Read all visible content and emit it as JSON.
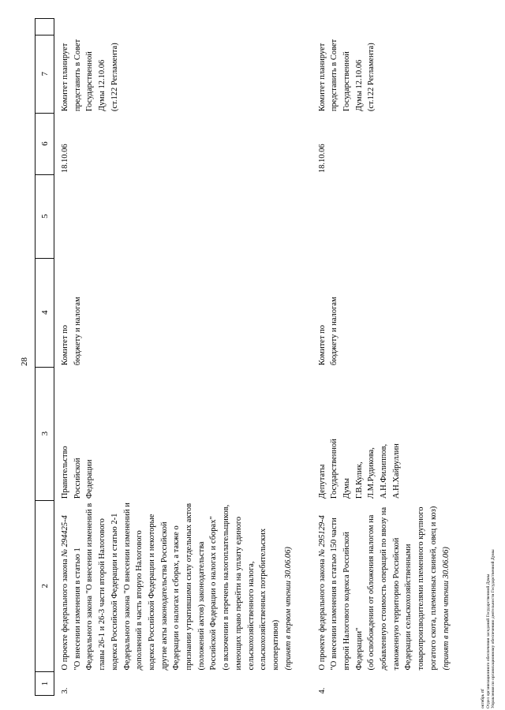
{
  "page": {
    "number": "28"
  },
  "table": {
    "header": [
      "1",
      "2",
      "3",
      "4",
      "5",
      "6",
      "7",
      ""
    ],
    "rows": [
      {
        "num": "3.",
        "bill": [
          {
            "parts": [
              {
                "t": "О проекте федерального закона "
              },
              {
                "t": "№ 294425-4",
                "i": true
              }
            ]
          },
          {
            "t": "\"О внесении изменения в статью 1"
          },
          {
            "t": "Федерального закона \"О внесении изменений в"
          },
          {
            "t": "главы 26-1 и 26-3 части второй Налогового"
          },
          {
            "t": "кодекса Российской Федерации и статью 2-1"
          },
          {
            "t": "Федерального закона \"О внесении изменений и"
          },
          {
            "t": "дополнений в часть вторую Налогового"
          },
          {
            "t": "кодекса Российской Федерации и некоторые"
          },
          {
            "t": "другие акты законодательства Российской"
          },
          {
            "t": "Федерации о налогах и сборах, а также о"
          },
          {
            "t": "признании утратившими силу отдельных актов"
          },
          {
            "t": "(положений актов) законодательства"
          },
          {
            "t": "Российской Федерации о налогах и сборах\""
          },
          {
            "t": "(о включении в перечень налогоплательщиков,"
          },
          {
            "t": "имеющих право перейти на уплату единого"
          },
          {
            "t": "сельскохозяйственного налога,"
          },
          {
            "t": "сельскохозяйственных потребительских"
          },
          {
            "t": "кооперативов)"
          },
          {
            "t": "(принят в первом чтении 30.06.06)",
            "i": true
          }
        ],
        "initiator": [
          {
            "t": "Правительство"
          },
          {
            "t": "Российской"
          },
          {
            "t": "Федерации"
          }
        ],
        "committee": [
          {
            "t": "Комитет по"
          },
          {
            "t": "бюджету и налогам"
          }
        ],
        "date": [
          {
            "t": "18.10.06"
          }
        ],
        "plan": [
          {
            "t": "Комитет планирует"
          },
          {
            "t": "представить в Совет"
          },
          {
            "t": "Государственной"
          },
          {
            "t": "Думы 12.10.06"
          },
          {
            "t": "(ст.122 Регламента)"
          }
        ]
      },
      {
        "num": "4.",
        "bill": [
          {
            "parts": [
              {
                "t": "О проекте федерального закона "
              },
              {
                "t": "№ 295129-4",
                "i": true
              }
            ]
          },
          {
            "t": "\"О внесении изменения в статью 150 части"
          },
          {
            "t": "второй Налогового кодекса Российской"
          },
          {
            "t": "Федерации\""
          },
          {
            "t": "(об освобождении от обложения налогом на"
          },
          {
            "t": "добавленную стоимость операций по ввозу на"
          },
          {
            "t": "таможенную территорию Российской"
          },
          {
            "t": "Федерации сельскохозяйственными"
          },
          {
            "t": "товаропроизводителями племенного крупного"
          },
          {
            "t": "рогатого скота, племенных свиней, овец и коз)"
          },
          {
            "t": "(принят в первом чтении 30.06.06)",
            "i": true
          }
        ],
        "initiator": [
          {
            "t": "Депутаты"
          },
          {
            "t": "Государственной"
          },
          {
            "t": "Думы"
          },
          {
            "t": "Г.В.Кулик,"
          },
          {
            "t": "Л.М.Рудикова,"
          },
          {
            "t": "А.Н.Филиппов,"
          },
          {
            "t": "А.Н.Хайруллин"
          }
        ],
        "committee": [
          {
            "t": "Комитет по"
          },
          {
            "t": "бюджету и налогам"
          }
        ],
        "date": [
          {
            "t": "18.10.06"
          }
        ],
        "plan": [
          {
            "t": "Комитет планирует"
          },
          {
            "t": "представить в Совет"
          },
          {
            "t": "Государственной"
          },
          {
            "t": "Думы 12.10.06"
          },
          {
            "t": "(ст.122 Регламента)"
          }
        ]
      }
    ]
  },
  "footer": {
    "lines": [
      "октябрь rtf",
      "Отдел организационного обеспечения заседаний Государственной Думы",
      "Управления по организационному обеспечению деятельности Государственной Думы"
    ]
  }
}
